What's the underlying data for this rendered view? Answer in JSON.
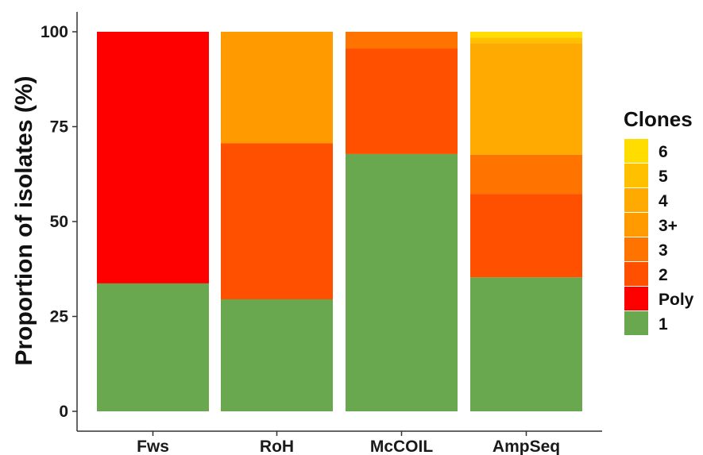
{
  "chart_data": {
    "type": "bar",
    "stacked": true,
    "title": "",
    "xlabel": "",
    "ylabel": "Proportion of isolates (%)",
    "ylim": [
      0,
      100
    ],
    "yticks": [
      "0",
      "25",
      "50",
      "75",
      "100"
    ],
    "categories": [
      "Fws",
      "RoH",
      "McCOIL",
      "AmpSeq"
    ],
    "series": [
      {
        "name": "1",
        "color": "#6aa84f",
        "values": [
          33.7,
          29.5,
          67.8,
          35.3
        ]
      },
      {
        "name": "Poly",
        "color": "#ff0000",
        "values": [
          66.3,
          0,
          0,
          0
        ]
      },
      {
        "name": "2",
        "color": "#ff5000",
        "values": [
          0,
          41.1,
          27.8,
          22.0
        ]
      },
      {
        "name": "3",
        "color": "#ff7400",
        "values": [
          0,
          0,
          4.4,
          10.3
        ]
      },
      {
        "name": "3+",
        "color": "#ff9a00",
        "values": [
          0,
          29.4,
          0,
          0
        ]
      },
      {
        "name": "4",
        "color": "#ffaa00",
        "values": [
          0,
          0,
          0,
          29.4
        ]
      },
      {
        "name": "5",
        "color": "#ffc000",
        "values": [
          0,
          0,
          0,
          1.5
        ]
      },
      {
        "name": "6",
        "color": "#ffdd00",
        "values": [
          0,
          0,
          0,
          1.5
        ]
      }
    ],
    "legend": {
      "title": "Clones",
      "placement": "right",
      "order": [
        "6",
        "5",
        "4",
        "3+",
        "3",
        "2",
        "Poly",
        "1"
      ]
    },
    "grid": false
  }
}
